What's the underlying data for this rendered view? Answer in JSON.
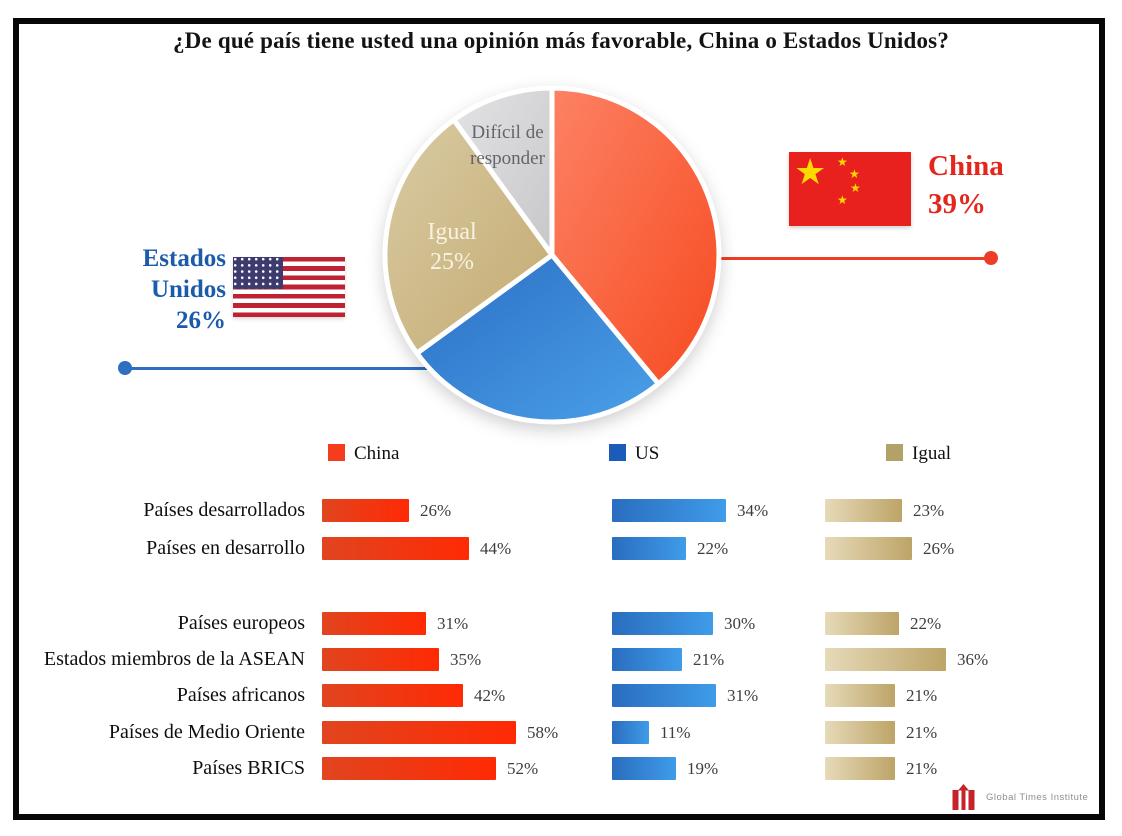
{
  "title": "¿De qué país tiene usted una opinión más favorable, China o Estados Unidos?",
  "chart_data": [
    {
      "type": "pie",
      "title": "¿De qué país tiene usted una opinión más favorable, China o Estados Unidos?",
      "slices": [
        {
          "label": "China",
          "value": 39,
          "colors": [
            "#fc8264",
            "#f74a20"
          ]
        },
        {
          "label": "US",
          "value": 26,
          "colors": [
            "#2b6ec4",
            "#4aa0e8"
          ]
        },
        {
          "label": "Igual",
          "value": 25,
          "colors": [
            "#d9cba4",
            "#c3aa70"
          ]
        },
        {
          "label": "Difícil de responder",
          "value": 10,
          "colors": [
            "#e3e3e5",
            "#c7c7ca"
          ]
        }
      ],
      "labels": {
        "dificil_line1": "Difícil de",
        "dificil_line2": "responder",
        "igual_line1": "Igual",
        "igual_line2": "25%"
      },
      "callouts": {
        "china": {
          "name": "China",
          "value_text": "39%",
          "color": "#e3271c",
          "line_color": "#ee3d27"
        },
        "us": {
          "line1": "Estados",
          "line2": "Unidos",
          "value_text": "26%",
          "color": "#1c5aac",
          "line_color": "#2e6fc1"
        }
      }
    },
    {
      "type": "bar",
      "categories": [
        "Países desarrollados",
        "Países en desarrollo",
        "Países europeos",
        "Estados miembros de la ASEAN",
        "Países africanos",
        "Países de Medio Oriente",
        "Países BRICS"
      ],
      "series": [
        {
          "name": "China",
          "color": "#f53c1c",
          "bar_colors": [
            "#e0451f",
            "#ff2a04"
          ],
          "values": [
            26,
            44,
            31,
            35,
            42,
            58,
            52
          ]
        },
        {
          "name": "US",
          "color": "#1a5cb8",
          "bar_colors": [
            "#2a6dc0",
            "#3f9ce8"
          ],
          "values": [
            34,
            22,
            30,
            21,
            31,
            11,
            19
          ]
        },
        {
          "name": "Igual",
          "color": "#b4a168",
          "bar_colors": [
            "#e6dab8",
            "#bda468"
          ],
          "values": [
            23,
            26,
            22,
            36,
            21,
            21,
            21
          ]
        }
      ],
      "value_suffix": "%",
      "legend_position": "top",
      "grid": false
    }
  ],
  "footer": {
    "brand": "Global Times Institute"
  }
}
